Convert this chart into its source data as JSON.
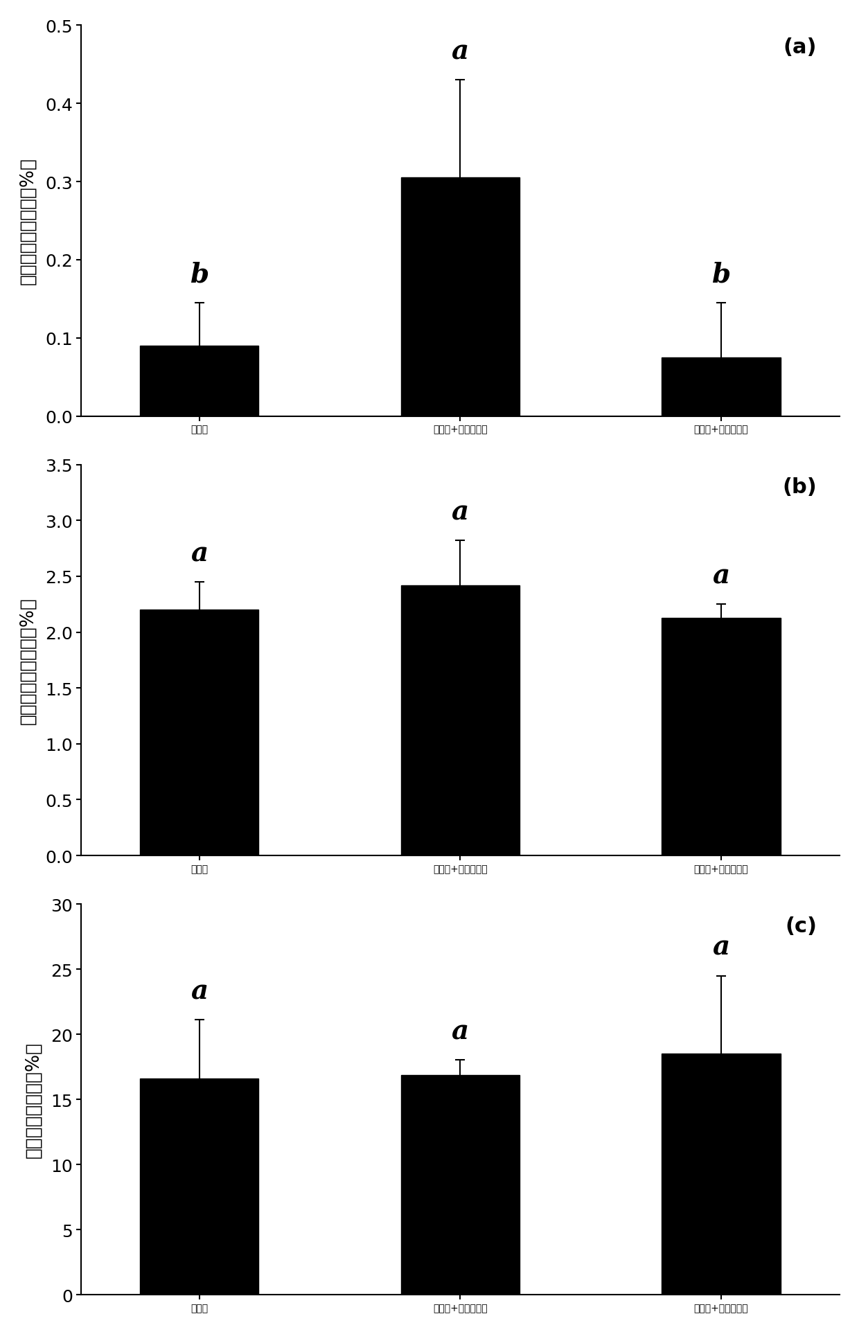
{
  "panel_a": {
    "label": "(a)",
    "ylabel": "共生真菌相对丰度（%）",
    "categories": [
      "根际土",
      "根际土+猪粪生物炭",
      "根际土+秸秆生物炭"
    ],
    "values": [
      0.09,
      0.305,
      0.075
    ],
    "errors": [
      0.055,
      0.125,
      0.07
    ],
    "sig_labels": [
      "b",
      "a",
      "b"
    ],
    "ylim": [
      0,
      0.5
    ],
    "yticks": [
      0.0,
      0.1,
      0.2,
      0.3,
      0.4,
      0.5
    ]
  },
  "panel_b": {
    "label": "(b)",
    "ylabel": "致病真菌相对丰度（%）",
    "categories": [
      "根际土",
      "根际土+猪粪生物炭",
      "根际土+秸秆生物炭"
    ],
    "values": [
      2.2,
      2.42,
      2.13
    ],
    "errors": [
      0.25,
      0.4,
      0.12
    ],
    "sig_labels": [
      "a",
      "a",
      "a"
    ],
    "ylim": [
      0,
      3.5
    ],
    "yticks": [
      0.0,
      0.5,
      1.0,
      1.5,
      2.0,
      2.5,
      3.0,
      3.5
    ]
  },
  "panel_c": {
    "label": "(c)",
    "ylabel": "降解菌相对丰度（%）",
    "categories": [
      "根际土",
      "根际土+猪粪生物炭",
      "根际土+秸秆生物炭"
    ],
    "values": [
      16.6,
      16.85,
      18.5
    ],
    "errors": [
      4.5,
      1.2,
      6.0
    ],
    "sig_labels": [
      "a",
      "a",
      "a"
    ],
    "ylim": [
      0,
      30
    ],
    "yticks": [
      0,
      5,
      10,
      15,
      20,
      25,
      30
    ]
  },
  "bar_color": "#000000",
  "bar_width": 0.5,
  "bar_positions": [
    0.6,
    1.7,
    2.8
  ],
  "xlim": [
    0.1,
    3.3
  ],
  "background_color": "#ffffff",
  "xtick_fontsize": 19,
  "sig_fontsize": 28,
  "ytick_fontsize": 18,
  "ylabel_fontsize": 19,
  "panel_label_fontsize": 22,
  "capsize": 5
}
